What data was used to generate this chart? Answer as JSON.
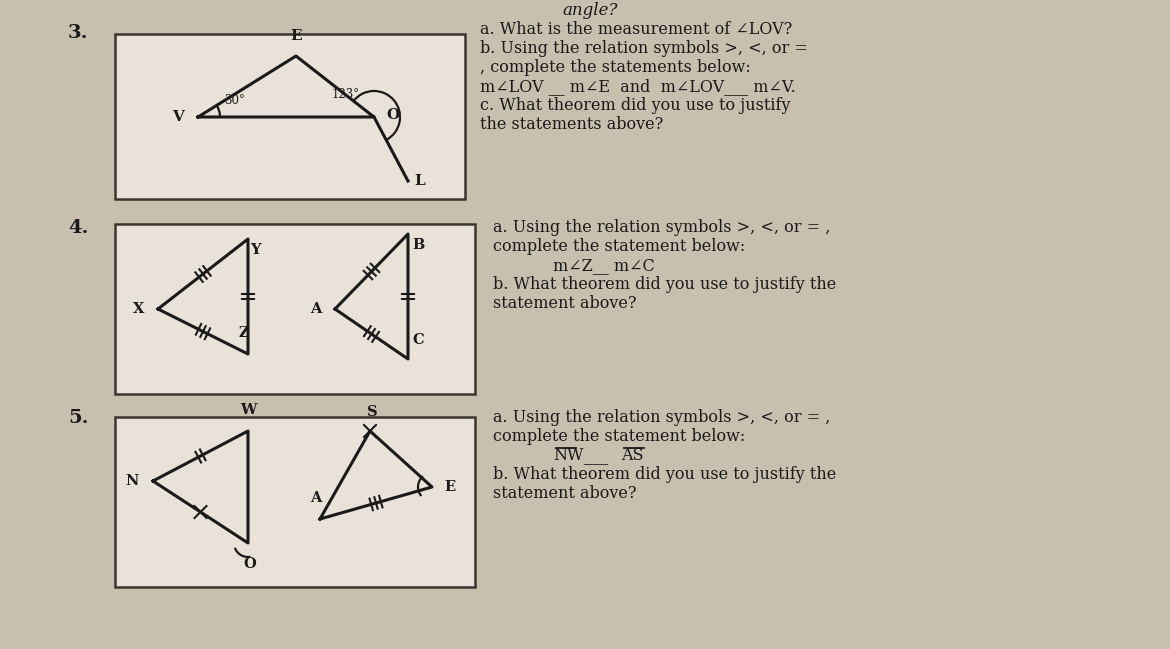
{
  "bg_color": "#c8bfaf",
  "box_color": "#e8e2d8",
  "box_edge_color": "#3a3530",
  "text_color": "#1a1a1a",
  "line_color": "#1a1a1a",
  "fig_width": 11.7,
  "fig_height": 6.49,
  "title_top": "angle?",
  "item3_label": "3.",
  "item4_label": "4.",
  "item5_label": "5.",
  "item3_text_lines": [
    "a. What is the measurement of ∠LOV?",
    "b. Using the relation symbols >, <, or =",
    ", complete the statements below:",
    "m∠LOV __ m∠E  and  m∠LOV___ m∠V.",
    "c. What theorem did you use to justify",
    "the statements above?"
  ],
  "item4_text_lines": [
    "a. Using the relation symbols >, <, or = ,",
    "complete the statement below:",
    "m∠Z__ m∠C",
    "b. What theorem did you use to justify the",
    "statement above?"
  ],
  "item5_text_lines": [
    "a. Using the relation symbols >, <, or = ,",
    "complete the statement below:",
    "NW ___ AS",
    "b. What theorem did you use to justify the",
    "statement above?"
  ]
}
